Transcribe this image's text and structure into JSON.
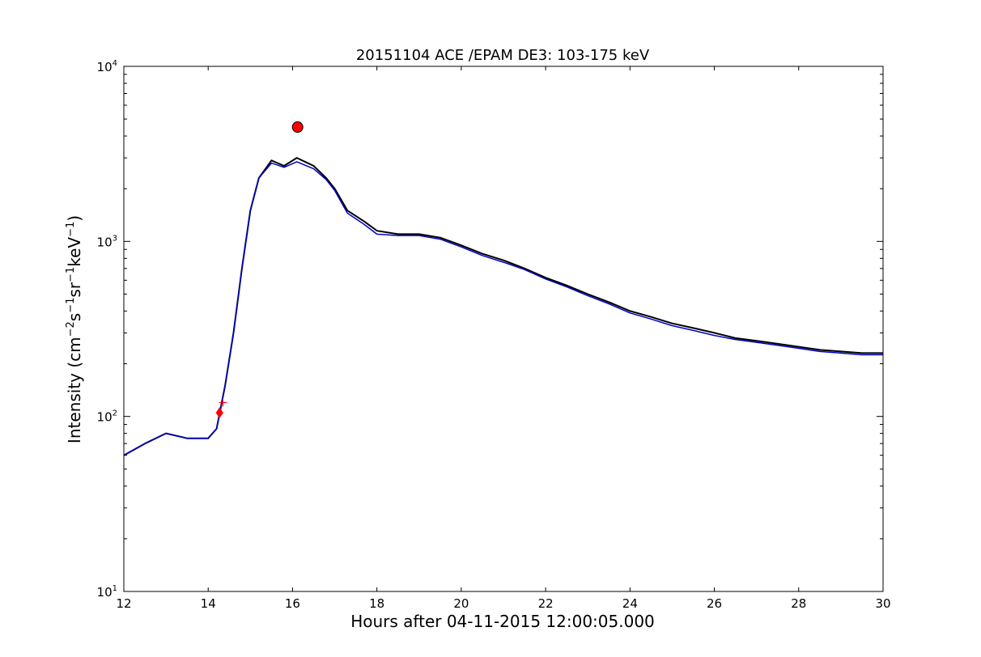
{
  "chart_data": {
    "type": "line",
    "title": "20151104 ACE /EPAM DE3: 103-175 keV",
    "xlabel": "Hours after 04-11-2015 12:00:05.000",
    "ylabel_parts": [
      "Intensity (cm",
      "−2",
      "s",
      "−1",
      "sr",
      "−1",
      "keV",
      "−1",
      ")"
    ],
    "xlim": [
      12,
      30
    ],
    "ylim": [
      10,
      10000
    ],
    "yscale": "log",
    "grid": false,
    "x_ticks": [
      12,
      14,
      16,
      18,
      20,
      22,
      24,
      26,
      28,
      30
    ],
    "x_tick_labels": [
      "12",
      "14",
      "16",
      "18",
      "20",
      "22",
      "24",
      "26",
      "28",
      "30"
    ],
    "y_ticks": [
      10,
      100,
      1000,
      10000
    ],
    "y_tick_labels": [
      {
        "base": "10",
        "exp": "1"
      },
      {
        "base": "10",
        "exp": "2"
      },
      {
        "base": "10",
        "exp": "3"
      },
      {
        "base": "10",
        "exp": "4"
      }
    ],
    "series": [
      {
        "color": "#000000",
        "description": "raw intensity",
        "x": [
          12.0,
          12.5,
          13.0,
          13.5,
          14.0,
          14.2,
          14.4,
          14.6,
          14.8,
          15.0,
          15.2,
          15.5,
          15.8,
          16.1,
          16.5,
          16.8,
          17.0,
          17.3,
          17.7,
          18.0,
          18.5,
          19.0,
          19.5,
          20.0,
          20.5,
          21.0,
          21.5,
          22.0,
          22.5,
          23.0,
          23.5,
          24.0,
          24.5,
          25.0,
          25.5,
          26.0,
          26.5,
          27.0,
          27.5,
          28.0,
          28.5,
          29.0,
          29.5,
          30.0
        ],
        "y": [
          60,
          70,
          80,
          75,
          75,
          85,
          150,
          300,
          700,
          1500,
          2300,
          2900,
          2700,
          3000,
          2700,
          2300,
          2000,
          1500,
          1300,
          1150,
          1100,
          1100,
          1050,
          950,
          850,
          780,
          700,
          620,
          560,
          500,
          450,
          400,
          370,
          340,
          320,
          300,
          280,
          270,
          260,
          250,
          240,
          235,
          230,
          230
        ]
      },
      {
        "color": "#0000cc",
        "description": "smoothed intensity",
        "x": [
          12.0,
          12.5,
          13.0,
          13.5,
          14.0,
          14.2,
          14.4,
          14.6,
          14.8,
          15.0,
          15.2,
          15.5,
          15.8,
          16.1,
          16.5,
          16.8,
          17.0,
          17.3,
          17.7,
          18.0,
          18.5,
          19.0,
          19.5,
          20.0,
          20.5,
          21.0,
          21.5,
          22.0,
          22.5,
          23.0,
          23.5,
          24.0,
          24.5,
          25.0,
          25.5,
          26.0,
          26.5,
          27.0,
          27.5,
          28.0,
          28.5,
          29.0,
          29.5,
          30.0
        ],
        "y": [
          60,
          70,
          80,
          75,
          75,
          85,
          150,
          300,
          700,
          1500,
          2300,
          2800,
          2650,
          2850,
          2600,
          2250,
          1950,
          1450,
          1250,
          1100,
          1080,
          1080,
          1030,
          930,
          830,
          760,
          690,
          610,
          550,
          490,
          440,
          390,
          360,
          330,
          310,
          290,
          275,
          265,
          255,
          245,
          235,
          230,
          225,
          225
        ]
      }
    ],
    "markers": [
      {
        "kind": "circle",
        "color": "#ff0000",
        "x": 16.12,
        "y": 4500
      },
      {
        "kind": "diamond",
        "color": "#ff0000",
        "x": 14.27,
        "y": 105
      },
      {
        "kind": "plus",
        "color": "#ff0000",
        "x": 14.35,
        "y": 120
      }
    ]
  }
}
